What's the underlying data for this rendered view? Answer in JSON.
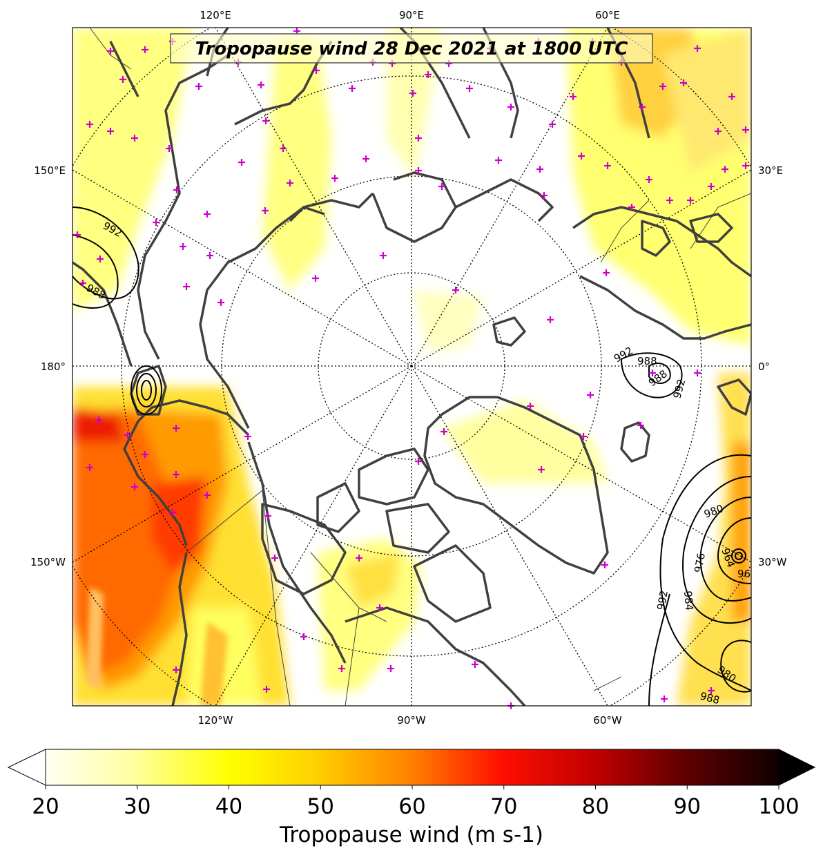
{
  "title": "Tropopause wind 28 Dec 2021 at 1800 UTC",
  "top_lon_labels": [
    "120°E",
    "90°E",
    "60°E"
  ],
  "bottom_lon_labels": [
    "120°W",
    "90°W",
    "60°W"
  ],
  "left_lon_labels": [
    "150°E",
    "180°",
    "150°W"
  ],
  "right_lon_labels": [
    "30°E",
    "0°",
    "30°W"
  ],
  "pressure_contours": {
    "unit": "hPa",
    "labels": [
      "992",
      "988",
      "992",
      "988",
      "988",
      "992",
      "980",
      "976",
      "984",
      "964",
      "992",
      "980",
      "988",
      "96"
    ]
  },
  "colorbar": {
    "ticks": [
      "20",
      "30",
      "40",
      "50",
      "60",
      "70",
      "80",
      "90",
      "100"
    ],
    "label": "Tropopause wind (m s-1)",
    "min": 20,
    "max": 100,
    "colors": [
      "#fffff0",
      "#ffff90",
      "#ffff00",
      "#ffd000",
      "#ff9000",
      "#ff5000",
      "#ff0000",
      "#c00000",
      "#800000",
      "#400000",
      "#000000"
    ]
  },
  "colors": {
    "coastline": "#404040",
    "marker": "#cc00cc",
    "contour": "#000000"
  }
}
